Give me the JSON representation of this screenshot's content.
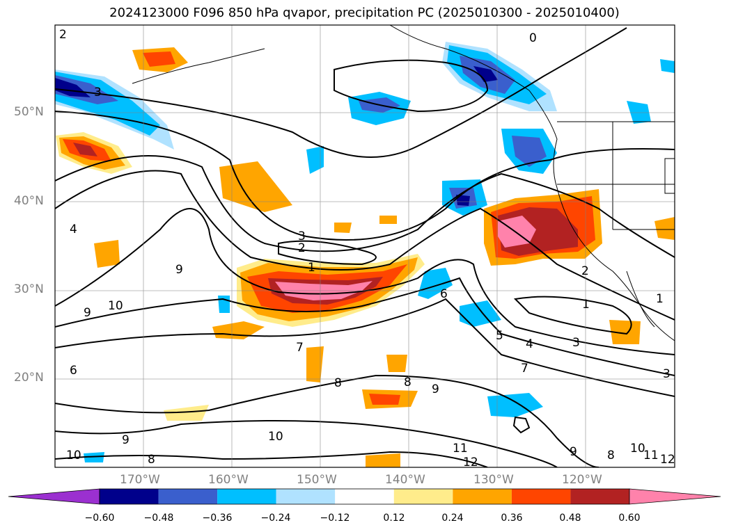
{
  "title": "2024123000 F096 850 hPa qvapor, precipitation PC (2025010300 - 2025010400)",
  "map": {
    "lon_range": [
      -177,
      -107
    ],
    "lat_range": [
      10,
      60
    ],
    "lat_ticks": [
      {
        "lat": 50,
        "label": "50°N"
      },
      {
        "lat": 40,
        "label": "40°N"
      },
      {
        "lat": 30,
        "label": "30°N"
      },
      {
        "lat": 20,
        "label": "20°N"
      }
    ],
    "lon_ticks": [
      {
        "lon": -170,
        "label": "170°W"
      },
      {
        "lon": -160,
        "label": "160°W"
      },
      {
        "lon": -150,
        "label": "150°W"
      },
      {
        "lon": -140,
        "label": "140°W"
      },
      {
        "lon": -130,
        "label": "130°W"
      },
      {
        "lon": -120,
        "label": "120°W"
      }
    ],
    "contour_labels": [
      "2",
      "0",
      "3",
      "3",
      "2",
      "1",
      "4",
      "9",
      "10",
      "9",
      "6",
      "7",
      "8",
      "8",
      "9",
      "10",
      "9",
      "8",
      "10",
      "11",
      "12",
      "6",
      "5",
      "4",
      "3",
      "7",
      "2",
      "1",
      "9",
      "8",
      "10",
      "11",
      "12",
      "3",
      "1"
    ]
  },
  "colorbar": {
    "colors": [
      "#9b30d0",
      "#00008b",
      "#3a5fcd",
      "#00bfff",
      "#b0e2ff",
      "#ffffff",
      "#ffec8b",
      "#ffa500",
      "#ff4500",
      "#b22222",
      "#ff82ab"
    ],
    "tick_labels": [
      "−0.60",
      "−0.48",
      "−0.36",
      "−0.24",
      "−0.12",
      "0.12",
      "0.24",
      "0.36",
      "0.48",
      "0.60"
    ]
  }
}
